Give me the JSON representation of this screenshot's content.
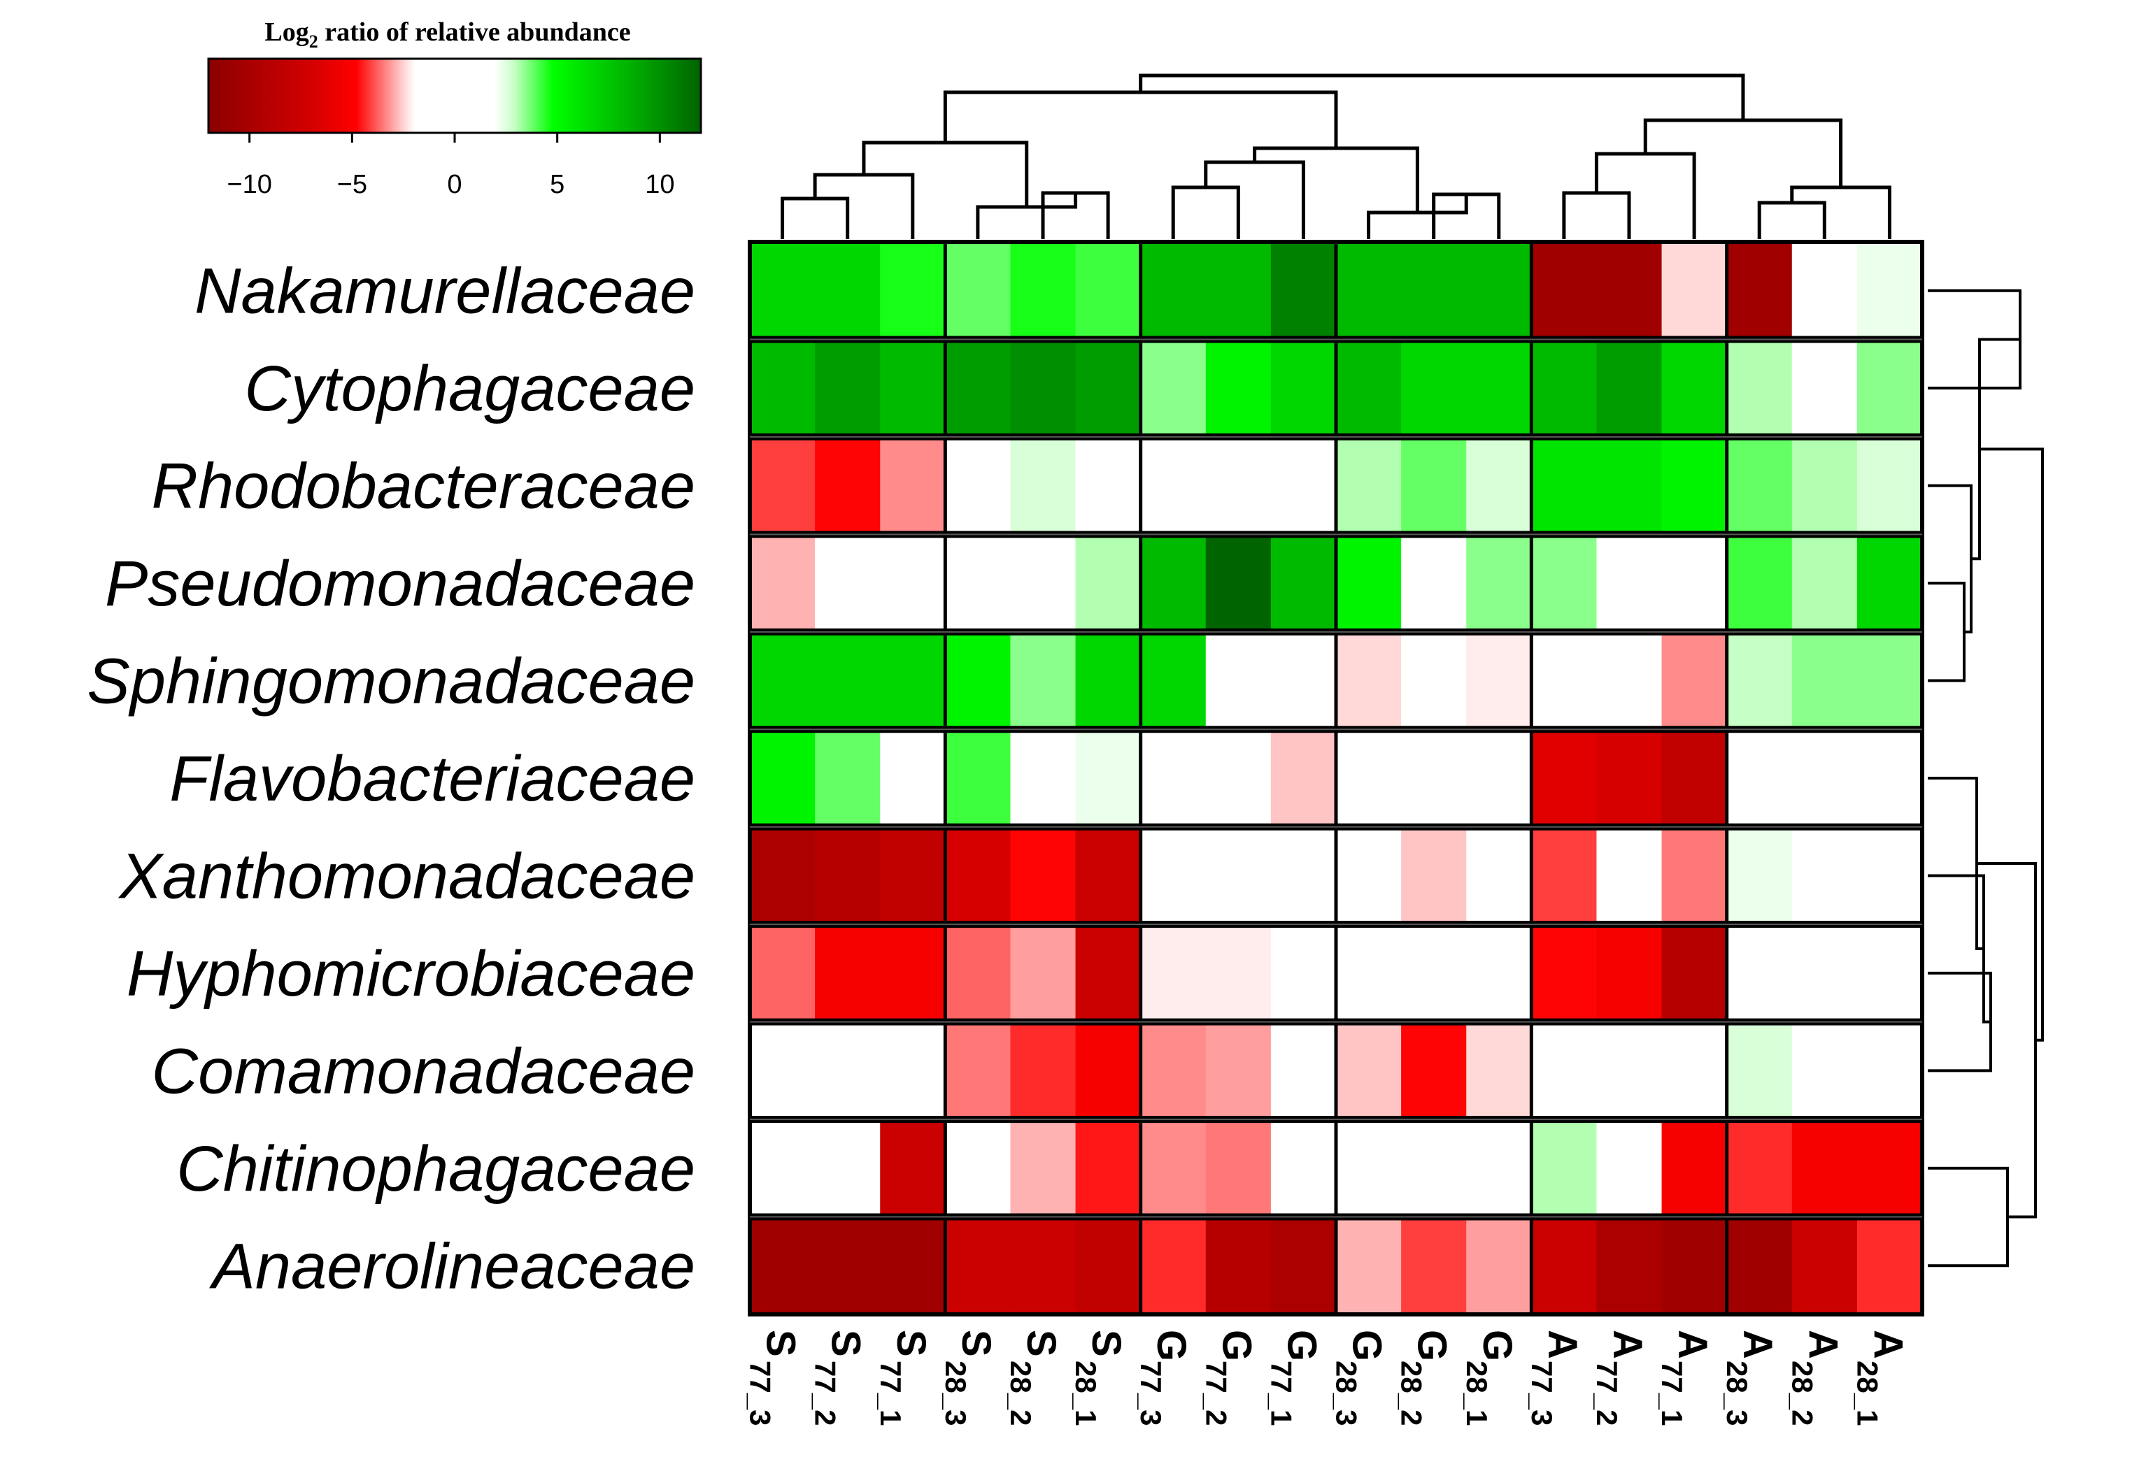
{
  "chart_data": {
    "type": "heatmap",
    "legend": {
      "title": "Log2 ratio of relative abundance",
      "title_prefix": "Log",
      "title_sub": "2",
      "title_suffix": " ratio  of relative  abundance",
      "range": [
        -12,
        12
      ],
      "ticks": [
        -10,
        -5,
        0,
        5,
        10
      ],
      "tick_labels": [
        "−10",
        "−5",
        "0",
        "5",
        "10"
      ]
    },
    "rows": [
      "Nakamurellaceae",
      "Cytophagaceae",
      "Rhodobacteraceae",
      "Pseudomonadaceae",
      "Sphingomonadaceae",
      "Flavobacteriaceae",
      "Xanthomonadaceae",
      "Hyphomicrobiaceae",
      "Comamonadaceae",
      "Chitinophagaceae",
      "Anaerolineaceae"
    ],
    "columns": [
      {
        "main": "S",
        "sub": "77_3"
      },
      {
        "main": "S",
        "sub": "77_2"
      },
      {
        "main": "S",
        "sub": "77_1"
      },
      {
        "main": "S",
        "sub": "28_3"
      },
      {
        "main": "S",
        "sub": "28_2"
      },
      {
        "main": "S",
        "sub": "28_1"
      },
      {
        "main": "G",
        "sub": "77_3"
      },
      {
        "main": "G",
        "sub": "77_2"
      },
      {
        "main": "G",
        "sub": "77_1"
      },
      {
        "main": "G",
        "sub": "28_3"
      },
      {
        "main": "G",
        "sub": "28_2"
      },
      {
        "main": "G",
        "sub": "28_1"
      },
      {
        "main": "A",
        "sub": "77_3"
      },
      {
        "main": "A",
        "sub": "77_2"
      },
      {
        "main": "A",
        "sub": "77_1"
      },
      {
        "main": "A",
        "sub": "28_3"
      },
      {
        "main": "A",
        "sub": "28_2"
      },
      {
        "main": "A",
        "sub": "28_1"
      }
    ],
    "values": [
      [
        8,
        8,
        6,
        4,
        6,
        5,
        9,
        9,
        11,
        9,
        9,
        9,
        -11,
        -11,
        -1,
        -11,
        0,
        0.5
      ],
      [
        9,
        10,
        9,
        10,
        10.5,
        10,
        3,
        7,
        8,
        9,
        8,
        8,
        9,
        10,
        8,
        2,
        0,
        3
      ],
      [
        -5,
        -6.5,
        -3,
        0,
        1,
        0,
        0,
        0,
        0,
        2,
        4,
        1,
        7.5,
        7.5,
        7,
        4,
        2,
        1
      ],
      [
        -2,
        0,
        0,
        0,
        0,
        2,
        9,
        12,
        9,
        7,
        0,
        3,
        3,
        0,
        0,
        5,
        2,
        8
      ],
      [
        8,
        8,
        8,
        7,
        3,
        8,
        8,
        0,
        0,
        -1,
        0,
        -0.5,
        0,
        0,
        -3,
        1.5,
        3,
        3
      ],
      [
        7,
        4,
        0,
        5,
        0,
        0.5,
        0,
        0,
        -1.5,
        0,
        0,
        0,
        -8,
        -8.5,
        -9.5,
        0,
        0,
        0
      ],
      [
        -10.5,
        -10,
        -9.5,
        -8.5,
        -6.5,
        -9,
        0,
        0,
        0,
        0,
        -1.5,
        0,
        -5,
        0,
        -3.5,
        0.5,
        0,
        0
      ],
      [
        -4,
        -7,
        -7,
        -4,
        -2.5,
        -9,
        -0.5,
        -0.5,
        0,
        0,
        0,
        0,
        -6.5,
        -7,
        -10,
        0,
        0,
        0
      ],
      [
        0,
        0,
        0,
        -3.5,
        -5.5,
        -7,
        -3,
        -2.5,
        0,
        -1.5,
        -6.5,
        -1,
        0,
        0,
        0,
        1,
        0,
        0
      ],
      [
        0,
        0,
        -9,
        0,
        -2,
        -6,
        -3,
        -3.5,
        0,
        0,
        0,
        0,
        2,
        0,
        -7,
        -5.5,
        -7,
        -7
      ],
      [
        -11,
        -11,
        -11,
        -9,
        -9,
        -9.5,
        -5.5,
        -10,
        -10.5,
        -2,
        -5,
        -2.5,
        -9,
        -10.5,
        -11,
        -11,
        -9,
        -5.5
      ]
    ],
    "column_groups": 6,
    "row_groups": 11,
    "column_dendrogram": "((((S77_3,S77_2),S77_1),(S28_3,(S28_2,S28_1))),(((G77_3,G77_2),G77_1),(G28_3,(G28_2,G28_1)))),(((A77_3,A77_2),A77_1),((A28_3,A28_2),A28_1))",
    "row_dendrogram": "((((Nakamurellaceae,Cytophagaceae),(Rhodobacteraceae,(Pseudomonadaceae,Sphingomonadaceae))),((Flavobacteriaceae,(Xanthomonadaceae,(Hyphomicrobiaceae,Comamonadaceae))),(Chitinophagaceae,Anaerolineaceae))))",
    "colors": {
      "neg_max": "#8b0000",
      "neg_mid": "#ff0000",
      "zero": "#ffffff",
      "pos_mid": "#00ff00",
      "pos_max": "#006400",
      "grid": "#000000"
    }
  }
}
